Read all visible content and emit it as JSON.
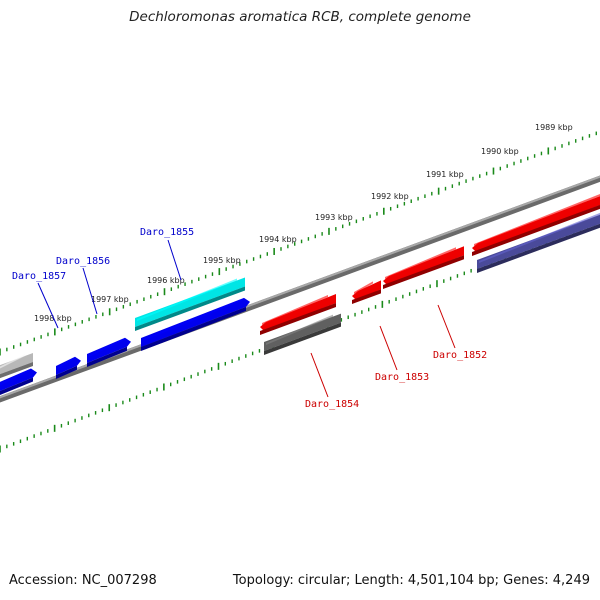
{
  "title": "Dechloromonas aromatica RCB, complete genome",
  "footer": {
    "accession": "Accession: NC_007298",
    "summary": "Topology: circular; Length: 4,501,104 bp; Genes: 4,249"
  },
  "scale_labels": [
    "1989 kbp",
    "1990 kbp",
    "1991 kbp",
    "1992 kbp",
    "1993 kbp",
    "1994 kbp",
    "1995 kbp",
    "1996 kbp",
    "1997 kbp",
    "1998 kbp"
  ],
  "gene_labels": {
    "forward": [
      "Daro_1855",
      "Daro_1856",
      "Daro_1857"
    ],
    "reverse": [
      "Daro_1852",
      "Daro_1853",
      "Daro_1854"
    ]
  },
  "colors": {
    "forward_label": "#0000cc",
    "reverse_label": "#cc0000",
    "tick": "#1a8a1a",
    "backbone": "#808080",
    "blue": "#0000ee",
    "cyan": "#00e5e5",
    "red": "#ee0000",
    "dark_gray": "#606060",
    "navy": "#4a4a9a",
    "light_gray": "#b8b8b8"
  }
}
